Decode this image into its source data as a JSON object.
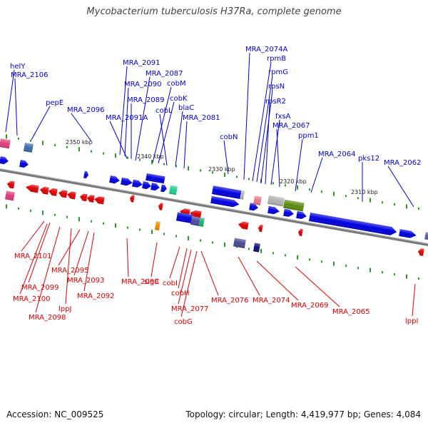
{
  "title": "Mycobacterium tuberculosis H37Ra, complete genome",
  "footer": {
    "accession": "Accession: NC_009525",
    "topology": "Topology: circular; Length: 4,419,977 bp; Genes: 4,084"
  },
  "colors": {
    "forward": "#0000dd",
    "reverse": "#dd0000",
    "backbone": "#888888",
    "tick": "#2a9a2a"
  },
  "scale_labels": [
    "2350 kbp",
    "2340 kbp",
    "2330 kbp",
    "2320 kbp",
    "2310 kbp"
  ],
  "forward_labels": [
    "helY",
    "MRA_2106",
    "pepE",
    "MRA_2096",
    "MRA_2091",
    "MRA_2090",
    "MRA_2091A",
    "MRA_2089",
    "MRA_2087",
    "cobM",
    "cobK",
    "cobL",
    "blaC",
    "MRA_2081",
    "cobN",
    "MRA_2074A",
    "rpmB",
    "rpmG",
    "rpsN",
    "rpsR2",
    "fxsA",
    "MRA_2067",
    "ppm1",
    "MRA_2064",
    "pks12",
    "MRA_2062"
  ],
  "reverse_labels": [
    "MRA_2101",
    "MRA_2099",
    "MRA_2100",
    "MRA_2098",
    "lppJ",
    "MRA_2095",
    "MRA_2093",
    "MRA_2092",
    "MRA_2088",
    "sigC",
    "cobI",
    "cobH",
    "MRA_2077",
    "cobG",
    "MRA_2076",
    "MRA_2074",
    "MRA_2069",
    "MRA_2065",
    "lppI"
  ]
}
